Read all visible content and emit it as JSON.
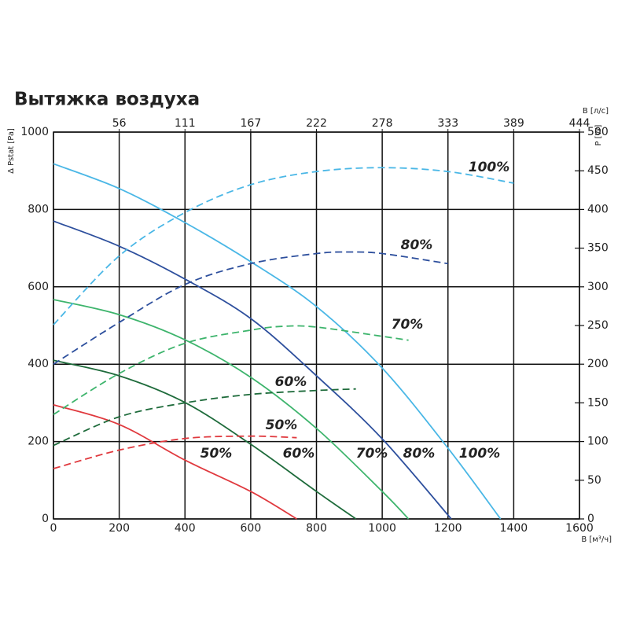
{
  "chart_data": {
    "type": "line",
    "title": "Вытяжка воздуха",
    "y_label": "Δ Pstat [Pa]",
    "y2_label": "P [W]",
    "x_label": "B [м³/ч]",
    "x2_label": "B [л/с]",
    "xlim": [
      0,
      1600
    ],
    "xticks": [
      0,
      200,
      400,
      600,
      800,
      1000,
      1200,
      1400,
      1600
    ],
    "x2ticks": [
      {
        "value": 200,
        "label": "56"
      },
      {
        "value": 400,
        "label": "111"
      },
      {
        "value": 600,
        "label": "167"
      },
      {
        "value": 800,
        "label": "222"
      },
      {
        "value": 1000,
        "label": "278"
      },
      {
        "value": 1200,
        "label": "333"
      },
      {
        "value": 1400,
        "label": "389"
      },
      {
        "value": 1600,
        "label": "444"
      }
    ],
    "ylim": [
      0,
      1000
    ],
    "yticks": [
      0,
      200,
      400,
      600,
      800,
      1000
    ],
    "y2lim": [
      0,
      500
    ],
    "y2ticks": [
      0,
      50,
      100,
      150,
      200,
      250,
      300,
      350,
      400,
      450,
      500
    ],
    "grid": true,
    "series": [
      {
        "name": "50%",
        "color": "#e0393e",
        "x": [
          0,
          200,
          400,
          600,
          740
        ],
        "values": [
          295,
          244,
          152,
          71,
          0
        ]
      },
      {
        "name": "60%",
        "color": "#1e6b3b",
        "x": [
          0,
          200,
          400,
          600,
          800,
          920
        ],
        "values": [
          410,
          370,
          301,
          193,
          71,
          0
        ]
      },
      {
        "name": "70%",
        "color": "#3db46c",
        "x": [
          0,
          200,
          400,
          600,
          800,
          1000,
          1080
        ],
        "values": [
          567,
          528,
          463,
          366,
          234,
          71,
          0
        ]
      },
      {
        "name": "80%",
        "color": "#2d4f9d",
        "x": [
          0,
          200,
          400,
          600,
          800,
          1000,
          1210
        ],
        "values": [
          770,
          705,
          620,
          518,
          370,
          207,
          0
        ]
      },
      {
        "name": "100%",
        "color": "#4ab7e6",
        "x": [
          0,
          200,
          400,
          600,
          800,
          1000,
          1200,
          1360
        ],
        "values": [
          918,
          854,
          766,
          665,
          549,
          390,
          183,
          0
        ]
      },
      {
        "name": "50%",
        "color": "#e0393e",
        "axis": "y2",
        "dashed": true,
        "x": [
          0,
          200,
          400,
          600,
          740
        ],
        "values": [
          65,
          89,
          104,
          107,
          105
        ]
      },
      {
        "name": "60%",
        "color": "#1e6b3b",
        "axis": "y2",
        "dashed": true,
        "x": [
          0,
          200,
          400,
          600,
          800,
          920
        ],
        "values": [
          95,
          132,
          150,
          161,
          166,
          168
        ]
      },
      {
        "name": "70%",
        "color": "#3db46c",
        "axis": "y2",
        "dashed": true,
        "x": [
          0,
          200,
          400,
          600,
          700,
          800,
          1000,
          1080
        ],
        "values": [
          135,
          188,
          227,
          244,
          249,
          248,
          236,
          231
        ]
      },
      {
        "name": "80%",
        "color": "#2d4f9d",
        "axis": "y2",
        "dashed": true,
        "x": [
          0,
          200,
          400,
          600,
          800,
          900,
          1000,
          1200
        ],
        "values": [
          200,
          254,
          303,
          330,
          343,
          345,
          343,
          330
        ]
      },
      {
        "name": "100%",
        "color": "#4ab7e6",
        "axis": "y2",
        "dashed": true,
        "x": [
          0,
          200,
          400,
          600,
          800,
          1000,
          1200,
          1400
        ],
        "values": [
          251,
          340,
          396,
          432,
          449,
          454,
          449,
          434
        ]
      }
    ]
  }
}
